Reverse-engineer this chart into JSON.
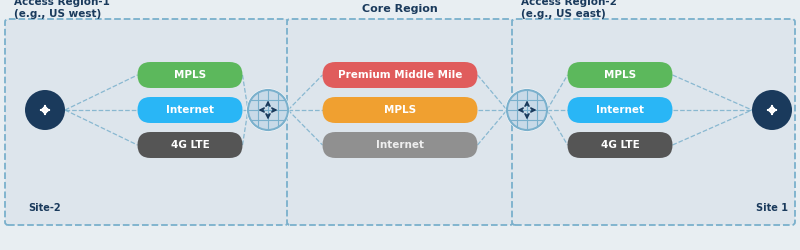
{
  "bg_color": "#e8eef2",
  "region1_title": "Access Region-1\n(e.g., US west)",
  "core_title": "Core Region",
  "region2_title": "Access Region-2\n(e.g., US east)",
  "site2_label": "Site-2",
  "site1_label": "Site 1",
  "access1_pills": [
    "MPLS",
    "Internet",
    "4G LTE"
  ],
  "access1_colors": [
    "#5cb85c",
    "#29b6f6",
    "#555555"
  ],
  "core_pills": [
    "Premium Middle Mile",
    "MPLS",
    "Internet"
  ],
  "core_colors": [
    "#e05c5c",
    "#f0a030",
    "#909090"
  ],
  "access2_pills": [
    "MPLS",
    "Internet",
    "4G LTE"
  ],
  "access2_colors": [
    "#5cb85c",
    "#29b6f6",
    "#555555"
  ],
  "dark_blue": "#1a3a5c",
  "hub_border": "#7ab0cc",
  "hub_fill": "#c8dae8",
  "dashed_color": "#7ab0cc",
  "region_bg": "#dde5ec",
  "text_color": "#1a3a5c",
  "pill_text_color": "#ffffff",
  "site_label_color": "#1a3a5c"
}
